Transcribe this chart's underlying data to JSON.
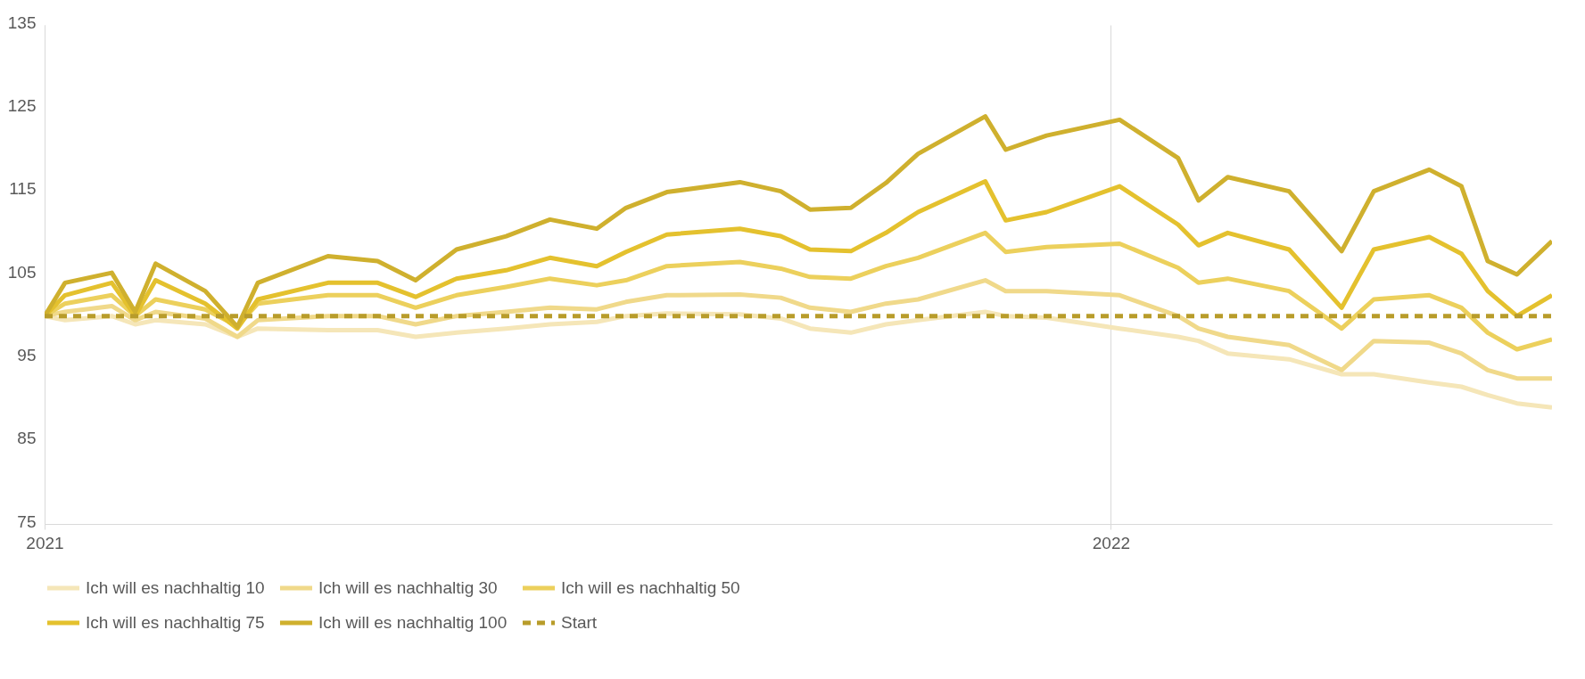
{
  "chart_data": {
    "type": "line",
    "x": [
      "2021-01-01",
      "2021-01-08",
      "2021-01-24",
      "2021-02-01",
      "2021-02-08",
      "2021-02-25",
      "2021-03-08",
      "2021-03-15",
      "2021-04-08",
      "2021-04-25",
      "2021-05-08",
      "2021-05-22",
      "2021-06-08",
      "2021-06-23",
      "2021-07-09",
      "2021-07-19",
      "2021-08-02",
      "2021-08-27",
      "2021-09-10",
      "2021-09-20",
      "2021-10-04",
      "2021-10-16",
      "2021-10-27",
      "2021-11-19",
      "2021-11-26",
      "2021-12-10",
      "2022-01-04",
      "2022-01-24",
      "2022-01-31",
      "2022-02-10",
      "2022-03-03",
      "2022-03-21",
      "2022-04-01",
      "2022-04-20",
      "2022-05-01",
      "2022-05-10",
      "2022-05-20",
      "2022-06-01"
    ],
    "series": [
      {
        "name": "Ich will es nachhaltig 10",
        "color": "#f5e6b8",
        "values": [
          100,
          99.5,
          100,
          99,
          99.5,
          99,
          97.5,
          98.5,
          98.3,
          98.3,
          97.5,
          98,
          98.5,
          99,
          99.3,
          100,
          100.3,
          100.2,
          99.7,
          98.5,
          98,
          99,
          99.5,
          100.5,
          100,
          99.8,
          98.5,
          97.5,
          97,
          95.5,
          94.8,
          93,
          93,
          92,
          91.5,
          90.5,
          89.5,
          89
        ]
      },
      {
        "name": "Ich will es nachhaltig 30",
        "color": "#f0d98a",
        "values": [
          100,
          100.5,
          101.2,
          99.5,
          100.5,
          99.7,
          97.5,
          99.5,
          100,
          100,
          99,
          100,
          100.5,
          101,
          100.8,
          101.7,
          102.5,
          102.6,
          102.2,
          101,
          100.5,
          101.5,
          102,
          104.3,
          103,
          103,
          102.5,
          100,
          98.5,
          97.5,
          96.5,
          93.5,
          97,
          96.8,
          95.5,
          93.5,
          92.5,
          92.5
        ]
      },
      {
        "name": "Ich will es nachhaltig 50",
        "color": "#ecd05c",
        "values": [
          100,
          101.5,
          102.5,
          100,
          102,
          100.8,
          98.8,
          101.5,
          102.5,
          102.5,
          101,
          102.5,
          103.5,
          104.5,
          103.7,
          104.3,
          106,
          106.5,
          105.7,
          104.7,
          104.5,
          106,
          107,
          110,
          107.7,
          108.3,
          108.7,
          105.8,
          104,
          104.5,
          103,
          98.5,
          102,
          102.5,
          101,
          98,
          96,
          97.2
        ]
      },
      {
        "name": "Ich will es nachhaltig 75",
        "color": "#e4c12e",
        "values": [
          100,
          102.5,
          104,
          100,
          104.3,
          101.5,
          98.5,
          102,
          104,
          104,
          102.3,
          104.5,
          105.5,
          107,
          106,
          107.7,
          109.8,
          110.5,
          109.6,
          108,
          107.8,
          110,
          112.5,
          116.2,
          111.5,
          112.5,
          115.6,
          111,
          108.5,
          110,
          108,
          101,
          108,
          109.5,
          107.5,
          103,
          100,
          102.5
        ]
      },
      {
        "name": "Ich will es nachhaltig 100",
        "color": "#cfb02e",
        "values": [
          100,
          104,
          105.2,
          100.5,
          106.3,
          103,
          98.7,
          104,
          107.2,
          106.6,
          104.3,
          108,
          109.6,
          111.6,
          110.5,
          113,
          114.9,
          116.1,
          115,
          112.8,
          113,
          116,
          119.5,
          124,
          120,
          121.7,
          123.6,
          119,
          113.9,
          116.7,
          115,
          107.8,
          115,
          117.6,
          115.6,
          106.6,
          105,
          109
        ]
      },
      {
        "name": "Start",
        "color": "#b89c2a",
        "line_style": "dashed",
        "x": [
          "2021-01-01",
          "2022-06-01"
        ],
        "values": [
          100,
          100
        ]
      }
    ],
    "xlim": [
      "2021-01-01",
      "2022-06-01"
    ],
    "xticks": [
      "2021",
      "2022"
    ],
    "ylim": [
      75,
      135
    ],
    "yticks": [
      75,
      85,
      95,
      105,
      115,
      125,
      135
    ],
    "grid": "x",
    "legend": "bottom",
    "line_style": "solid"
  }
}
